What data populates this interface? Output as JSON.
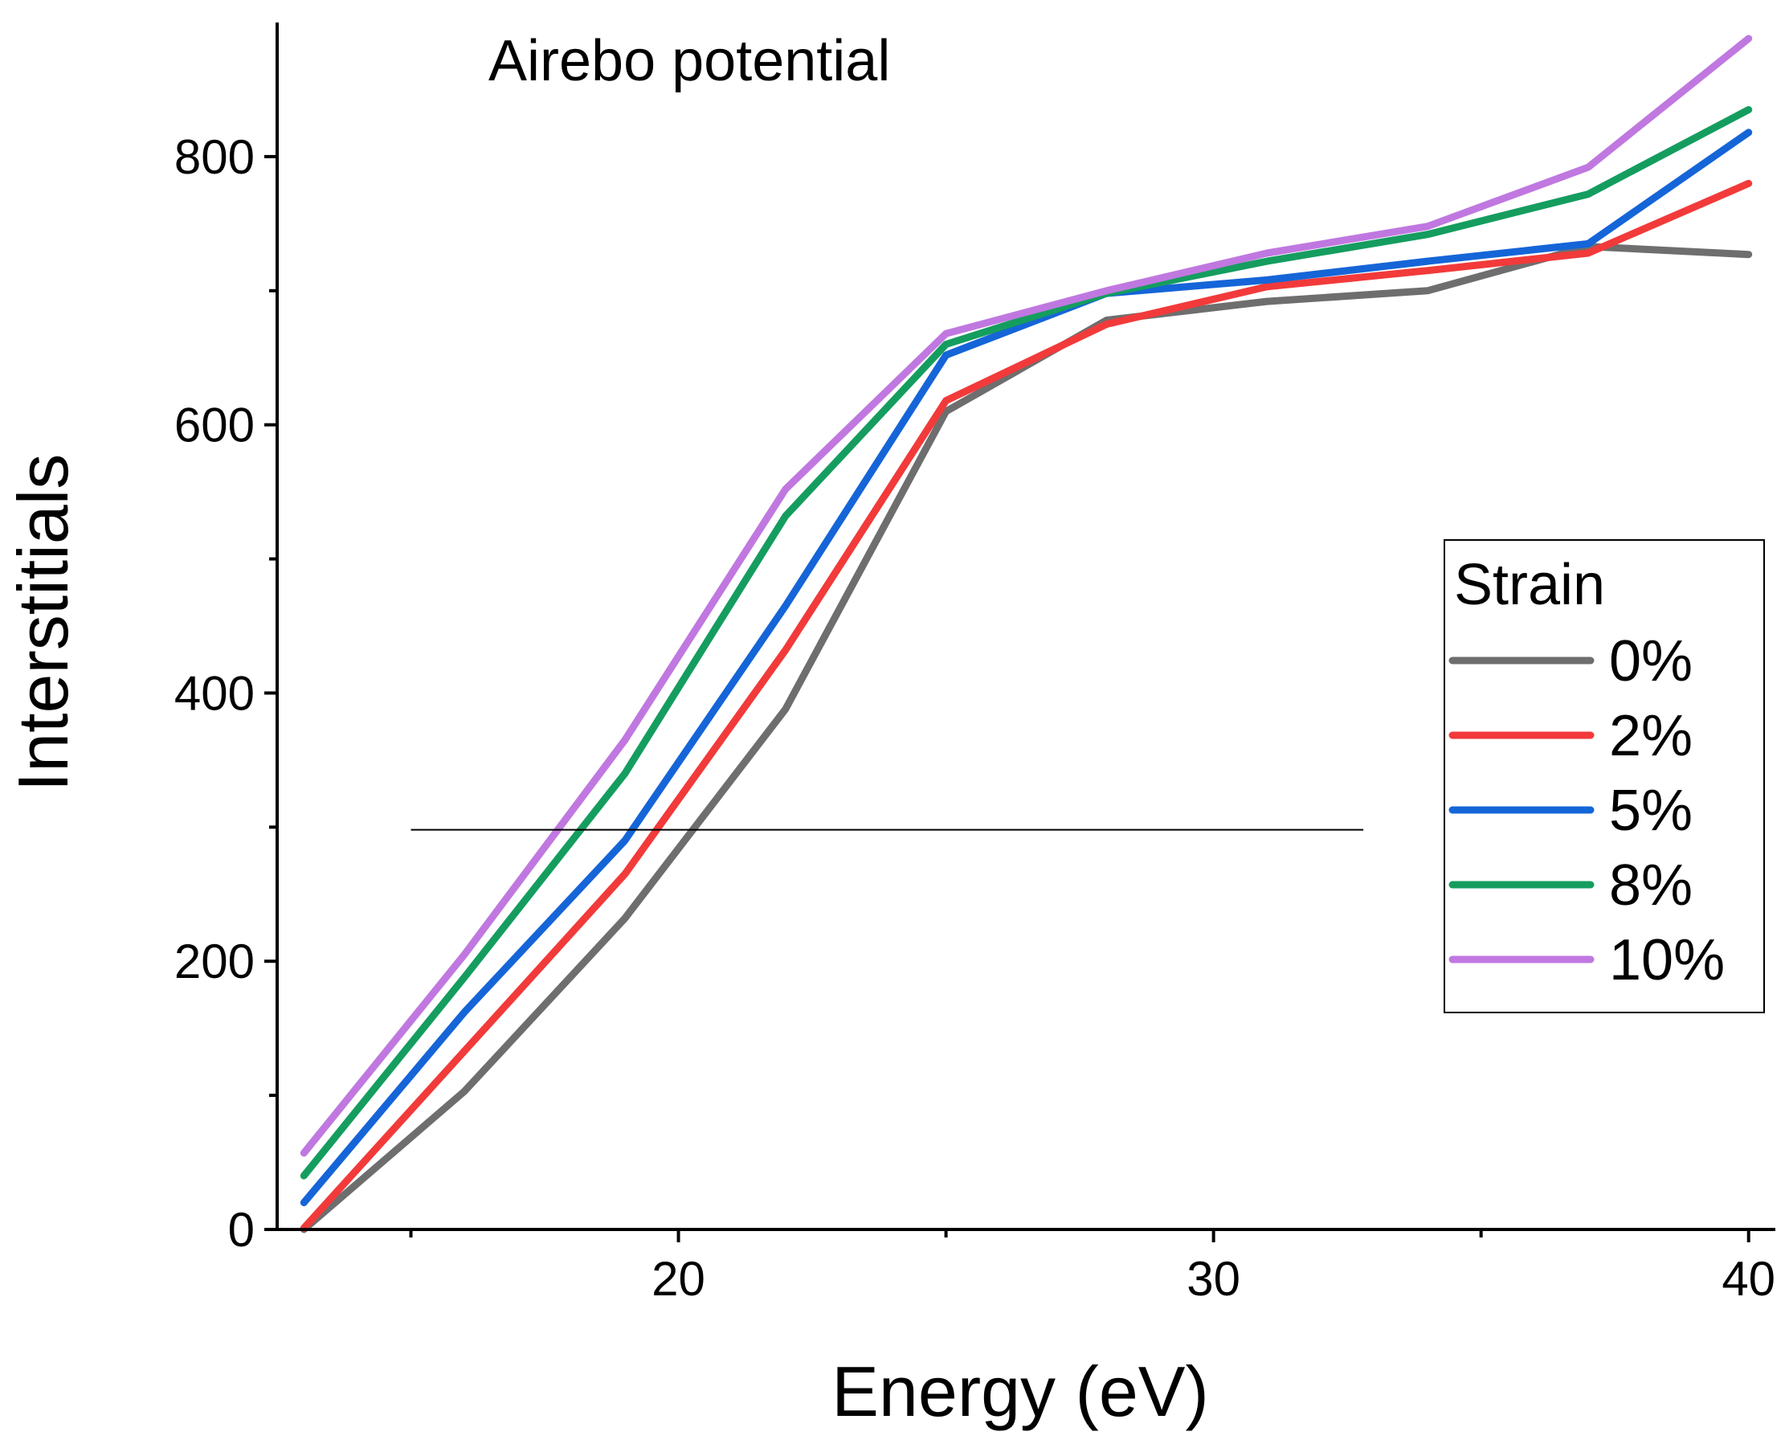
{
  "chart_data": {
    "type": "line",
    "annotation": "Airebo potential",
    "xlabel": "Energy (eV)",
    "ylabel": "Interstitials",
    "xlim": [
      12.5,
      40.5
    ],
    "ylim": [
      0,
      900
    ],
    "xticks": [
      20,
      30,
      40
    ],
    "xticks_minor": [
      15,
      25,
      35
    ],
    "yticks": [
      0,
      200,
      400,
      600,
      800
    ],
    "yticks_minor": [
      100,
      300,
      500,
      700
    ],
    "x": [
      13,
      16,
      19,
      22,
      25,
      28,
      31,
      34,
      37,
      40
    ],
    "series": [
      {
        "name": "0%",
        "color": "#6e6e6e",
        "values": [
          0,
          103,
          232,
          388,
          610,
          678,
          692,
          700,
          733,
          727
        ]
      },
      {
        "name": "2%",
        "color": "#f23a3a",
        "values": [
          1,
          133,
          265,
          432,
          618,
          675,
          703,
          715,
          728,
          780
        ]
      },
      {
        "name": "5%",
        "color": "#1565d8",
        "values": [
          20,
          162,
          290,
          465,
          652,
          698,
          708,
          722,
          735,
          818
        ]
      },
      {
        "name": "8%",
        "color": "#159d5f",
        "values": [
          40,
          188,
          340,
          532,
          660,
          698,
          722,
          742,
          772,
          835
        ]
      },
      {
        "name": "10%",
        "color": "#c078e0",
        "values": [
          57,
          205,
          365,
          552,
          668,
          700,
          728,
          748,
          792,
          888
        ]
      }
    ],
    "reference_line": {
      "y": 298,
      "x_range": [
        15,
        32.8
      ],
      "color": "#000000"
    },
    "legend": {
      "title": "Strain",
      "placement": "right-middle"
    },
    "grid": false
  }
}
